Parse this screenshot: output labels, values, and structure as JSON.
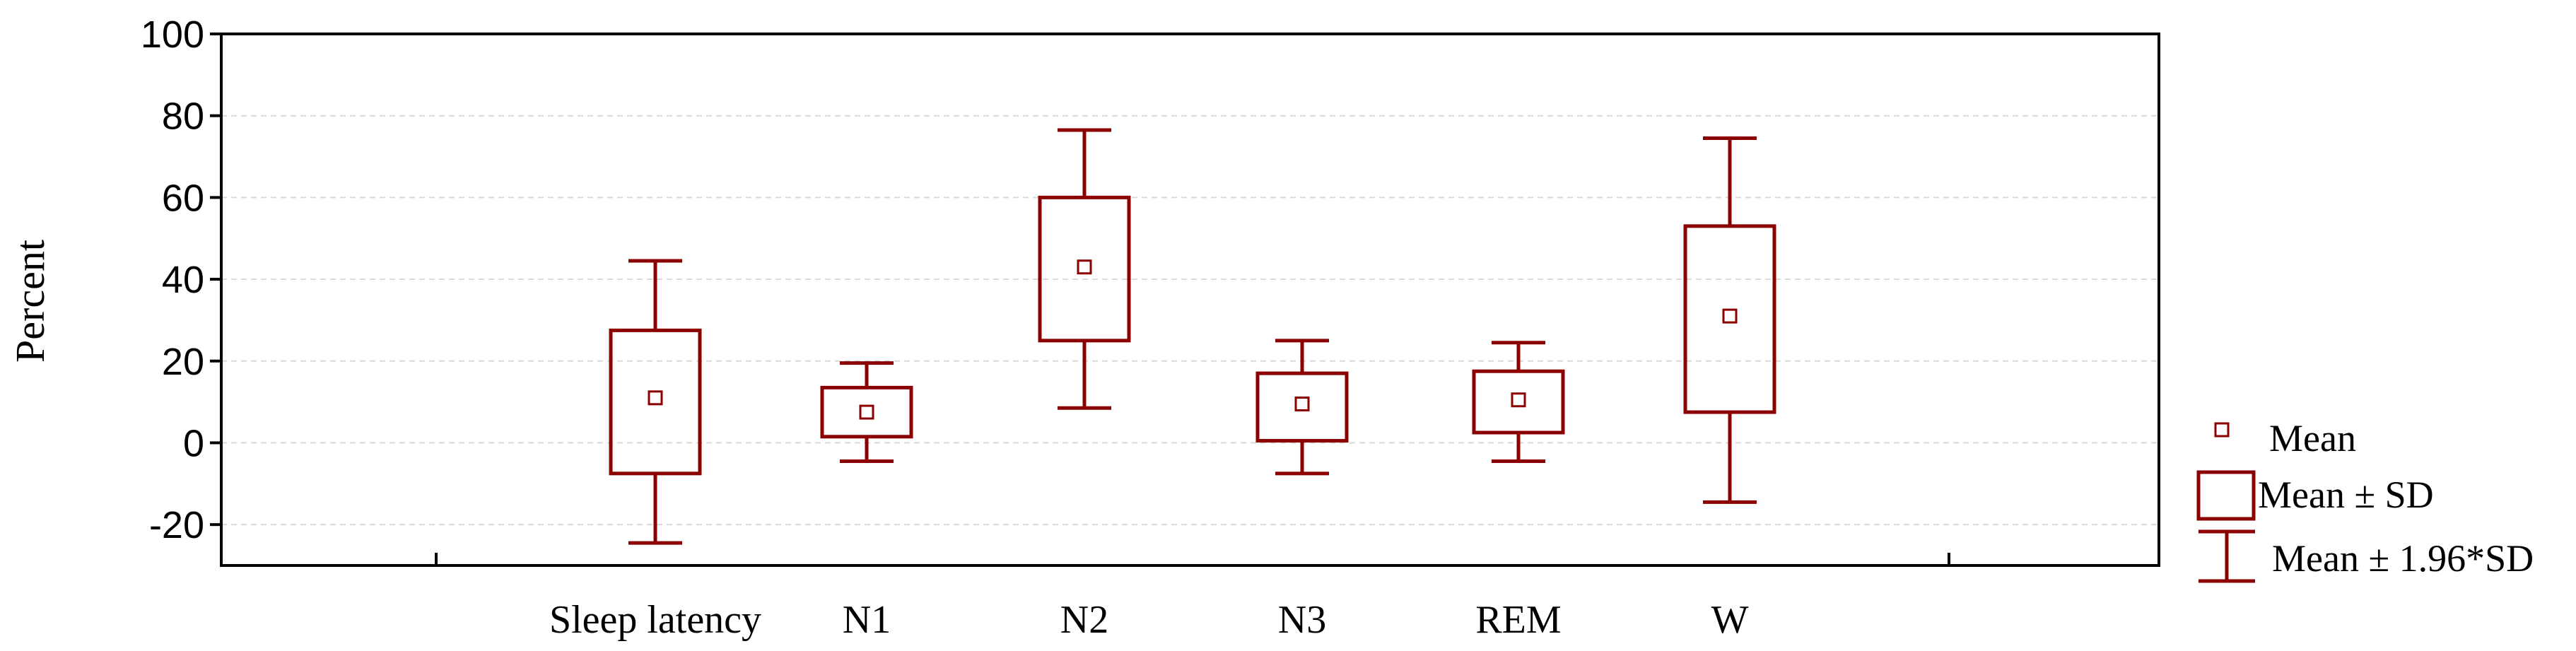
{
  "chart_data": {
    "type": "box",
    "title": "",
    "xlabel": "",
    "ylabel": "Percent",
    "ylim": [
      -30,
      100
    ],
    "yticks": [
      100,
      80,
      60,
      40,
      20,
      0,
      -20
    ],
    "ytick_labels": [
      "100",
      "80",
      "60",
      "40",
      "20",
      "0",
      "-20"
    ],
    "grid": true,
    "categories": [
      "Sleep latency",
      "N1",
      "N2",
      "N3",
      "REM",
      "W"
    ],
    "series": [
      {
        "mean": [
          11,
          7.5,
          43,
          9.5,
          10.5,
          31
        ],
        "sd_low": [
          -7.5,
          1.5,
          25,
          0.5,
          2.5,
          7.5
        ],
        "sd_high": [
          27.5,
          13.5,
          60,
          17,
          17.5,
          53
        ],
        "ci_low": [
          -24.5,
          -4.5,
          8.5,
          -7.5,
          -4.5,
          -14.5
        ],
        "ci_high": [
          44.5,
          19.5,
          76.5,
          25,
          24.5,
          74.5
        ]
      }
    ],
    "color": "#8b0000",
    "legend_position": "right",
    "legend": {
      "mean": "Mean",
      "sd": "Mean ± SD",
      "ci": "Mean ± 1.96*SD"
    }
  }
}
